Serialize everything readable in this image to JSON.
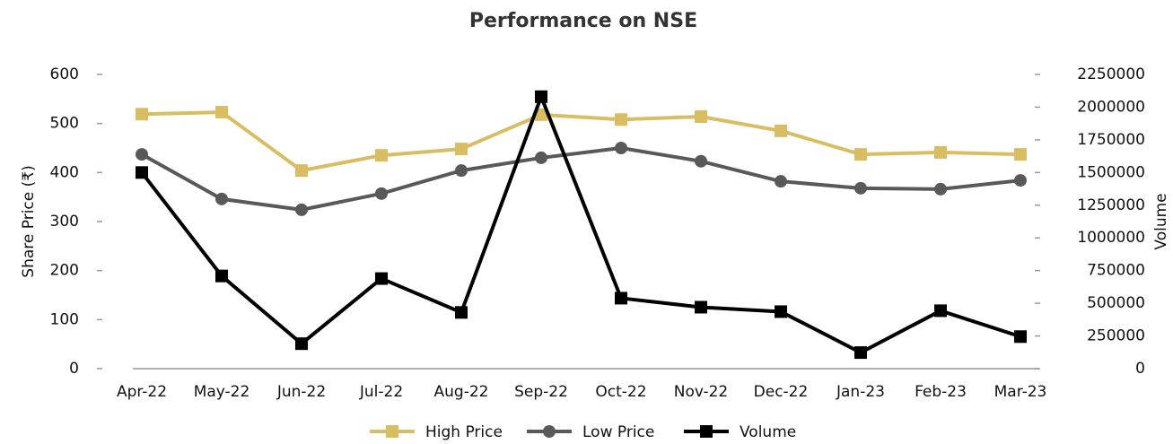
{
  "chart_data": {
    "type": "line",
    "title": "Performance on NSE",
    "ylabel": "Share Price (₹)",
    "y2label": "Volume",
    "categories": [
      "Apr-22",
      "May-22",
      "Jun-22",
      "Jul-22",
      "Aug-22",
      "Sep-22",
      "Oct-22",
      "Nov-22",
      "Dec-22",
      "Jan-23",
      "Feb-23",
      "Mar-23"
    ],
    "series": [
      {
        "name": "High Price",
        "color": "#d9bd63",
        "marker": "square",
        "values": [
          519,
          523,
          404,
          435,
          448,
          518,
          508,
          514,
          485,
          437,
          441,
          437
        ]
      },
      {
        "name": "Low Price",
        "color": "#595959",
        "marker": "circle",
        "values": [
          437,
          346,
          324,
          357,
          404,
          430,
          450,
          423,
          382,
          368,
          366,
          384
        ]
      },
      {
        "name": "Volume",
        "color": "#000000",
        "marker": "square",
        "axis": "y2",
        "values": [
          1500000,
          709000,
          191000,
          689000,
          430000,
          2080000,
          539000,
          470000,
          436000,
          123000,
          443000,
          245000
        ]
      }
    ],
    "ylim": [
      0,
      600
    ],
    "yticks": [
      0,
      100,
      200,
      300,
      400,
      500,
      600
    ],
    "y2lim": [
      0,
      2250000
    ],
    "y2ticks": [
      0,
      250000,
      500000,
      750000,
      1000000,
      1250000,
      1500000,
      1750000,
      2000000,
      2250000
    ],
    "legend": "bottom"
  }
}
